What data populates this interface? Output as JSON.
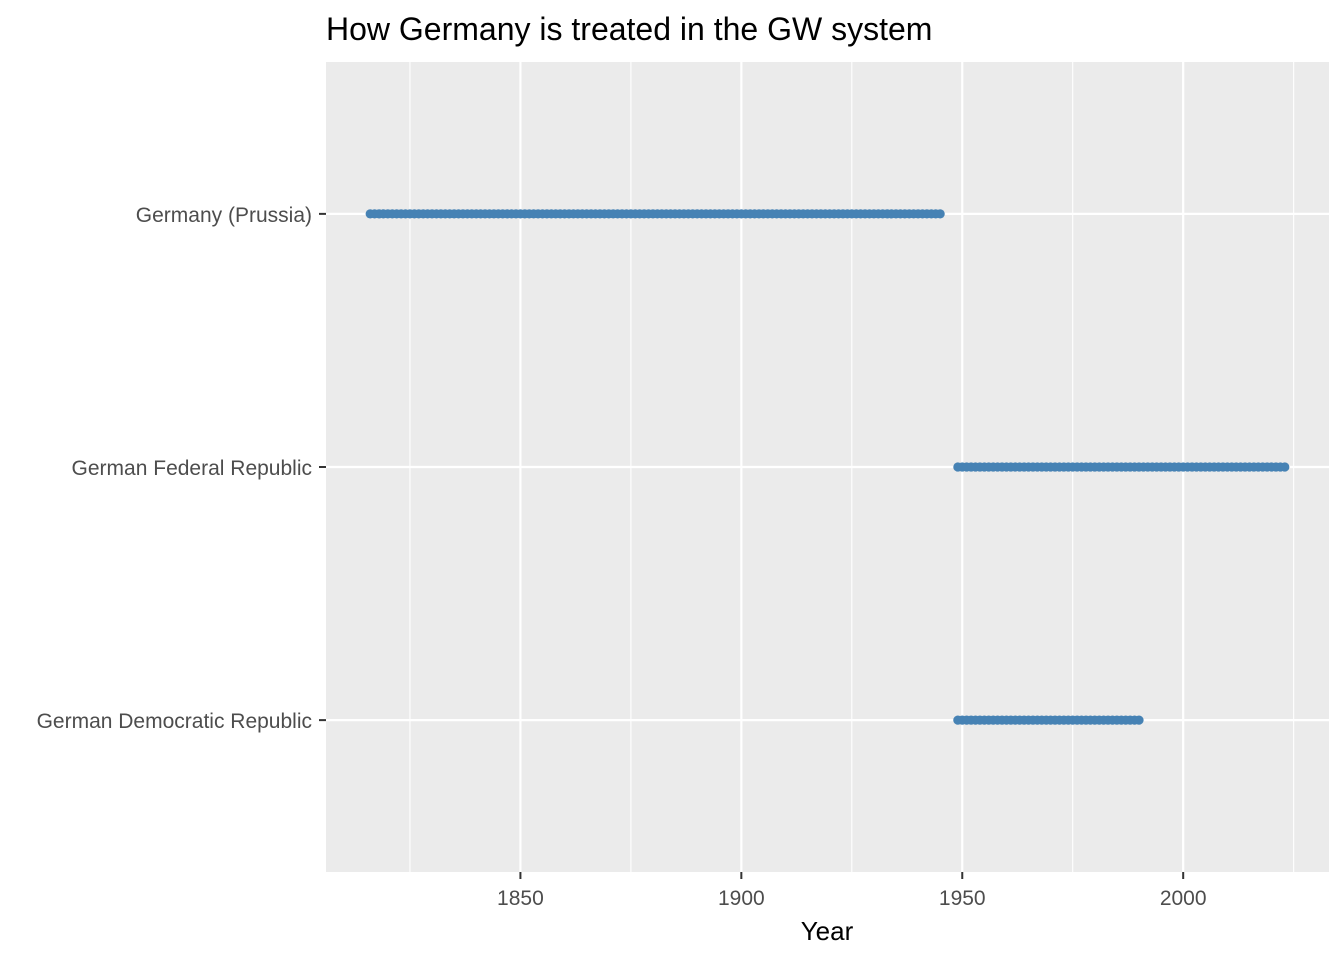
{
  "chart_data": {
    "type": "scatter",
    "title": "How Germany is treated in the GW system",
    "xlabel": "Year",
    "ylabel": "",
    "xlim": [
      1806,
      2033
    ],
    "x_ticks": [
      1850,
      1900,
      1950,
      2000
    ],
    "categories": [
      "Germany (Prussia)",
      "German Federal Republic",
      "German Democratic Republic"
    ],
    "grid": true,
    "legend": "none",
    "point_color": "#4682b4",
    "panel_color": "#ebebeb",
    "series": [
      {
        "category": "Germany (Prussia)",
        "start": 1816,
        "end": 1945
      },
      {
        "category": "German Federal Republic",
        "start": 1949,
        "end": 2023
      },
      {
        "category": "German Democratic Republic",
        "start": 1949,
        "end": 1990
      }
    ]
  }
}
